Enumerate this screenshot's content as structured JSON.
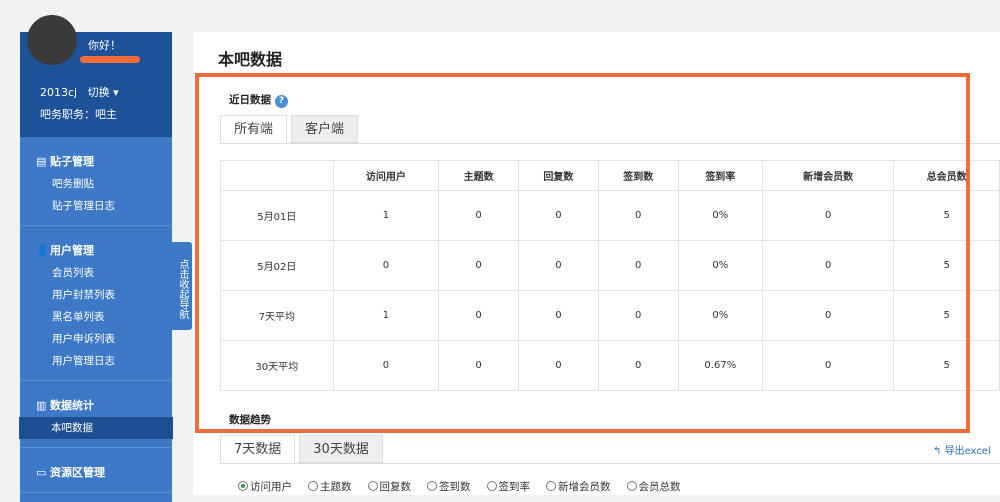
{
  "sidebar": {
    "greeting": "你好！",
    "forum": "2013cj",
    "switch": "切换 ▾",
    "role": "吧务职务：吧主",
    "groups": [
      {
        "title": "贴子管理",
        "icon": "document-icon",
        "items": [
          "吧务删贴",
          "贴子管理日志"
        ]
      },
      {
        "title": "用户管理",
        "icon": "user-icon",
        "items": [
          "会员列表",
          "用户封禁列表",
          "黑名单列表",
          "用户申诉列表",
          "用户管理日志"
        ]
      },
      {
        "title": "数据统计",
        "icon": "bar-chart-icon",
        "items": [
          "本吧数据"
        ]
      },
      {
        "title": "资源区管理",
        "icon": "folder-icon",
        "items": []
      }
    ],
    "toggle": "点击收起导航"
  },
  "main": {
    "title": "本吧数据",
    "recent_title": "近日数据",
    "tabs": [
      "所有端",
      "客户端"
    ],
    "table": {
      "headers": [
        "",
        "访问用户",
        "主题数",
        "回复数",
        "签到数",
        "签到率",
        "新增会员数",
        "总会员数"
      ],
      "rows": [
        [
          "5月01日",
          "1",
          "0",
          "0",
          "0",
          "0%",
          "0",
          "5"
        ],
        [
          "5月02日",
          "0",
          "0",
          "0",
          "0",
          "0%",
          "0",
          "5"
        ],
        [
          "7天平均",
          "1",
          "0",
          "0",
          "0",
          "0%",
          "0",
          "5"
        ],
        [
          "30天平均",
          "0",
          "0",
          "0",
          "0",
          "0.67%",
          "0",
          "5"
        ]
      ]
    },
    "trend_title": "数据趋势",
    "trend_tabs": [
      "7天数据",
      "30天数据"
    ],
    "export": "导出excel",
    "radios": [
      "访问用户",
      "主题数",
      "回复数",
      "签到数",
      "签到率",
      "新增会员数",
      "会员总数"
    ],
    "selected_radio": "访问用户"
  },
  "colors": {
    "sidebar": "#3d79c6",
    "sidebar_head": "#1e5298",
    "highlight_frame": "#f26b3a"
  }
}
